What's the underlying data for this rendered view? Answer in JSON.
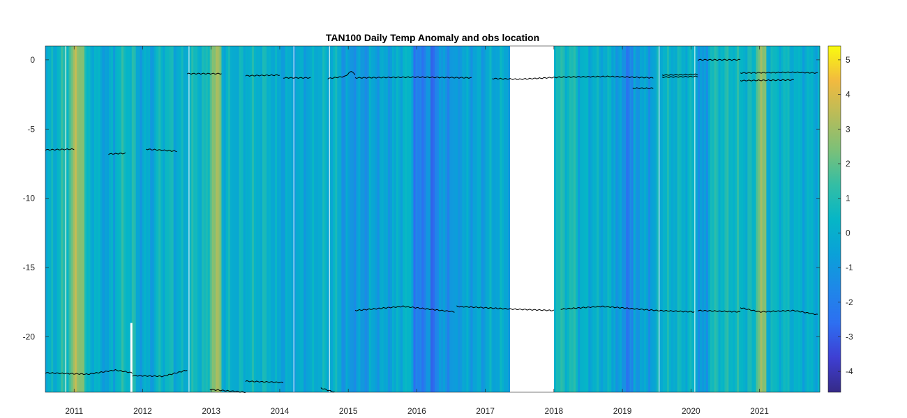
{
  "chart_data": {
    "type": "heatmap",
    "title": "TAN100 Daily Temp Anomaly and obs location",
    "xlabel": "",
    "ylabel": "",
    "xlim": [
      2010.58,
      2021.88
    ],
    "ylim": [
      -24,
      1
    ],
    "x_ticks": [
      "2011",
      "2012",
      "2013",
      "2014",
      "2015",
      "2016",
      "2017",
      "2018",
      "2019",
      "2020",
      "2021"
    ],
    "x_tick_values": [
      2011,
      2012,
      2013,
      2014,
      2015,
      2016,
      2017,
      2018,
      2019,
      2020,
      2021
    ],
    "y_ticks": [
      "0",
      "-5",
      "-10",
      "-15",
      "-20"
    ],
    "y_tick_values": [
      0,
      -5,
      -10,
      -15,
      -20
    ],
    "colorbar": {
      "colormap": "parula",
      "clim": [
        -4.6,
        5.4
      ],
      "ticks": [
        "5",
        "4",
        "3",
        "2",
        "1",
        "0",
        "-1",
        "-2",
        "-3",
        "-4"
      ],
      "tick_values": [
        5,
        4,
        3,
        2,
        1,
        0,
        -1,
        -2,
        -3,
        -4
      ]
    },
    "anomaly_bands": [
      {
        "x0": 2010.58,
        "x1": 2010.75,
        "value": 0.0
      },
      {
        "x0": 2010.75,
        "x1": 2010.92,
        "value": 0.8
      },
      {
        "x0": 2010.92,
        "x1": 2010.98,
        "value": 2.0
      },
      {
        "x0": 2010.98,
        "x1": 2011.15,
        "value": 2.9
      },
      {
        "x0": 2011.15,
        "x1": 2011.35,
        "value": 0.2
      },
      {
        "x0": 2011.35,
        "x1": 2011.6,
        "value": -0.4
      },
      {
        "x0": 2011.6,
        "x1": 2011.9,
        "value": 0.6
      },
      {
        "x0": 2011.9,
        "x1": 2012.2,
        "value": -0.3
      },
      {
        "x0": 2012.2,
        "x1": 2012.45,
        "value": 0.4
      },
      {
        "x0": 2012.45,
        "x1": 2012.65,
        "value": 0.0
      },
      {
        "x0": 2012.65,
        "x1": 2012.98,
        "value": 0.5
      },
      {
        "x0": 2012.98,
        "x1": 2013.15,
        "value": 2.6
      },
      {
        "x0": 2013.15,
        "x1": 2013.5,
        "value": 0.1
      },
      {
        "x0": 2013.5,
        "x1": 2013.9,
        "value": 0.3
      },
      {
        "x0": 2013.9,
        "x1": 2014.5,
        "value": -0.3
      },
      {
        "x0": 2014.5,
        "x1": 2014.9,
        "value": 0.1
      },
      {
        "x0": 2014.9,
        "x1": 2015.3,
        "value": -0.9
      },
      {
        "x0": 2015.3,
        "x1": 2015.7,
        "value": -0.5
      },
      {
        "x0": 2015.7,
        "x1": 2015.95,
        "value": 0.1
      },
      {
        "x0": 2015.95,
        "x1": 2016.1,
        "value": -2.2
      },
      {
        "x0": 2016.1,
        "x1": 2016.2,
        "value": -1.2
      },
      {
        "x0": 2016.2,
        "x1": 2016.26,
        "value": -3.0
      },
      {
        "x0": 2016.26,
        "x1": 2016.6,
        "value": -1.1
      },
      {
        "x0": 2016.6,
        "x1": 2017.0,
        "value": -0.5
      },
      {
        "x0": 2017.0,
        "x1": 2017.36,
        "value": -0.2
      },
      {
        "x0": 2018.0,
        "x1": 2018.35,
        "value": 0.7
      },
      {
        "x0": 2018.35,
        "x1": 2018.9,
        "value": 0.0
      },
      {
        "x0": 2018.9,
        "x1": 2019.05,
        "value": -1.0
      },
      {
        "x0": 2019.05,
        "x1": 2019.16,
        "value": -2.0
      },
      {
        "x0": 2019.16,
        "x1": 2019.5,
        "value": -0.6
      },
      {
        "x0": 2019.5,
        "x1": 2020.1,
        "value": 0.2
      },
      {
        "x0": 2020.1,
        "x1": 2020.25,
        "value": -1.1
      },
      {
        "x0": 2020.25,
        "x1": 2020.7,
        "value": 0.6
      },
      {
        "x0": 2020.7,
        "x1": 2020.95,
        "value": 0.4
      },
      {
        "x0": 2020.95,
        "x1": 2021.1,
        "value": 2.4
      },
      {
        "x0": 2021.1,
        "x1": 2021.5,
        "value": 0.3
      },
      {
        "x0": 2021.5,
        "x1": 2021.88,
        "value": 0.0
      }
    ],
    "data_gaps": [
      {
        "x0": 2017.36,
        "x1": 2018.0
      },
      {
        "x0": 2011.82,
        "x1": 2011.85,
        "y_top": -19,
        "y_bottom": -24
      }
    ],
    "series": [
      {
        "segments": [
          {
            "x": [
              2010.58,
              2011.0
            ],
            "y": [
              -6.5,
              -6.45
            ]
          },
          {
            "x": [
              2011.5,
              2011.75
            ],
            "y": [
              -6.8,
              -6.75
            ]
          },
          {
            "x": [
              2012.05,
              2012.5
            ],
            "y": [
              -6.45,
              -6.6
            ]
          },
          {
            "x": [
              2012.65,
              2013.15
            ],
            "y": [
              -1.0,
              -1.0
            ]
          },
          {
            "x": [
              2013.5,
              2014.0
            ],
            "y": [
              -1.15,
              -1.1
            ]
          },
          {
            "x": [
              2014.05,
              2014.45
            ],
            "y": [
              -1.3,
              -1.3
            ]
          },
          {
            "x": [
              2014.7,
              2014.95,
              2015.05,
              2015.1
            ],
            "y": [
              -1.35,
              -1.2,
              -0.8,
              -1.1
            ]
          },
          {
            "x": [
              2015.1,
              2016.0,
              2016.8
            ],
            "y": [
              -1.3,
              -1.25,
              -1.3
            ]
          },
          {
            "x": [
              2017.1,
              2017.5,
              2018.1
            ],
            "y": [
              -1.35,
              -1.4,
              -1.25
            ]
          },
          {
            "x": [
              2018.1,
              2018.8,
              2019.45
            ],
            "y": [
              -1.25,
              -1.2,
              -1.3
            ]
          },
          {
            "x": [
              2019.15,
              2019.45
            ],
            "y": [
              -2.05,
              -2.05
            ]
          },
          {
            "x": [
              2019.58,
              2020.1
            ],
            "y": [
              -1.1,
              -1.05
            ]
          },
          {
            "x": [
              2019.58,
              2020.1
            ],
            "y": [
              -1.25,
              -1.2
            ]
          },
          {
            "x": [
              2020.1,
              2020.72
            ],
            "y": [
              0.0,
              0.0
            ]
          },
          {
            "x": [
              2020.72,
              2021.5,
              2021.85
            ],
            "y": [
              -0.95,
              -0.9,
              -0.95
            ]
          },
          {
            "x": [
              2020.72,
              2021.5
            ],
            "y": [
              -1.5,
              -1.45
            ]
          },
          {
            "x": [
              2015.1,
              2015.8,
              2016.55
            ],
            "y": [
              -18.1,
              -17.8,
              -18.2
            ]
          },
          {
            "x": [
              2016.58,
              2017.4,
              2018.0
            ],
            "y": [
              -17.8,
              -18.0,
              -18.1
            ]
          },
          {
            "x": [
              2018.1,
              2018.7,
              2019.5,
              2020.05
            ],
            "y": [
              -18.0,
              -17.8,
              -18.1,
              -18.2
            ]
          },
          {
            "x": [
              2020.1,
              2020.72
            ],
            "y": [
              -18.1,
              -18.2
            ]
          },
          {
            "x": [
              2020.72,
              2021.0,
              2021.5,
              2021.85
            ],
            "y": [
              -17.9,
              -18.2,
              -18.1,
              -18.4
            ]
          },
          {
            "x": [
              2010.58,
              2011.2,
              2011.6,
              2011.85
            ],
            "y": [
              -22.6,
              -22.7,
              -22.4,
              -22.6
            ]
          },
          {
            "x": [
              2011.85,
              2012.3,
              2012.65
            ],
            "y": [
              -22.8,
              -22.85,
              -22.4
            ]
          },
          {
            "x": [
              2012.98,
              2013.5
            ],
            "y": [
              -23.8,
              -24.0
            ]
          },
          {
            "x": [
              2013.5,
              2014.05
            ],
            "y": [
              -23.2,
              -23.3
            ]
          },
          {
            "x": [
              2014.6,
              2014.8
            ],
            "y": [
              -23.7,
              -24.0
            ]
          }
        ]
      }
    ]
  }
}
